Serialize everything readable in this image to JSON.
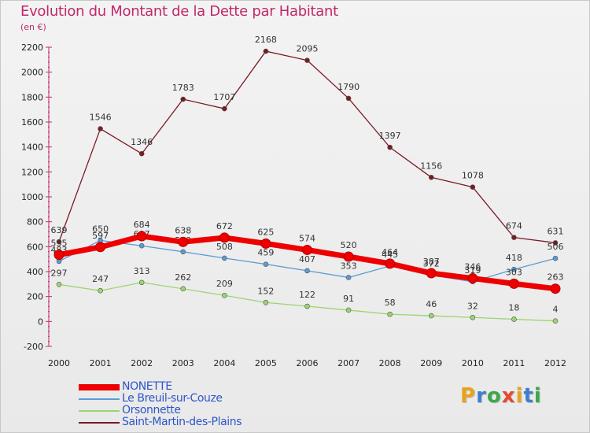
{
  "header": {
    "title": "Evolution du Montant de la Dette par Habitant",
    "unit": "(en €)"
  },
  "logo": {
    "text": "Proxiti",
    "letters": [
      "P",
      "r",
      "o",
      "x",
      "i",
      "t",
      "i"
    ],
    "colors": [
      "#e8a21c",
      "#3b7fd0",
      "#3aa84a",
      "#e34a2e",
      "#e8a21c",
      "#3b7fd0",
      "#3aa84a"
    ]
  },
  "chart_data": {
    "type": "line",
    "title": "Evolution du Montant de la Dette par Habitant",
    "ylabel": "(en €)",
    "xlabel": "",
    "x": [
      "2000",
      "2001",
      "2002",
      "2003",
      "2004",
      "2005",
      "2006",
      "2007",
      "2008",
      "2009",
      "2010",
      "2011",
      "2012"
    ],
    "ylim": [
      -200,
      2200
    ],
    "yticks": [
      -200,
      0,
      200,
      400,
      600,
      800,
      1000,
      1200,
      1400,
      1600,
      1800,
      2000,
      2200
    ],
    "grid": false,
    "legend_position": "bottom-left",
    "series": [
      {
        "name": "Saint-Martin-des-Plains",
        "color": "#7a1a22",
        "values": [
          639,
          1546,
          1346,
          1783,
          1707,
          2168,
          2095,
          1790,
          1397,
          1156,
          1078,
          674,
          631
        ]
      },
      {
        "name": "Orsonnette",
        "color": "#9ad66e",
        "values": [
          297,
          247,
          313,
          262,
          209,
          152,
          122,
          91,
          58,
          46,
          32,
          18,
          4
        ]
      },
      {
        "name": "Le Breuil-sur-Couze",
        "color": "#5b9bd5",
        "values": [
          483,
          650,
          607,
          559,
          508,
          459,
          407,
          353,
          445,
          372,
          319,
          418,
          506
        ]
      },
      {
        "name": "NONETTE",
        "color": "#ee0000",
        "values": [
          535,
          597,
          684,
          638,
          672,
          625,
          574,
          520,
          464,
          387,
          346,
          303,
          263
        ]
      }
    ],
    "legend_order": [
      "NONETTE",
      "Le Breuil-sur-Couze",
      "Orsonnette",
      "Saint-Martin-des-Plains"
    ]
  }
}
